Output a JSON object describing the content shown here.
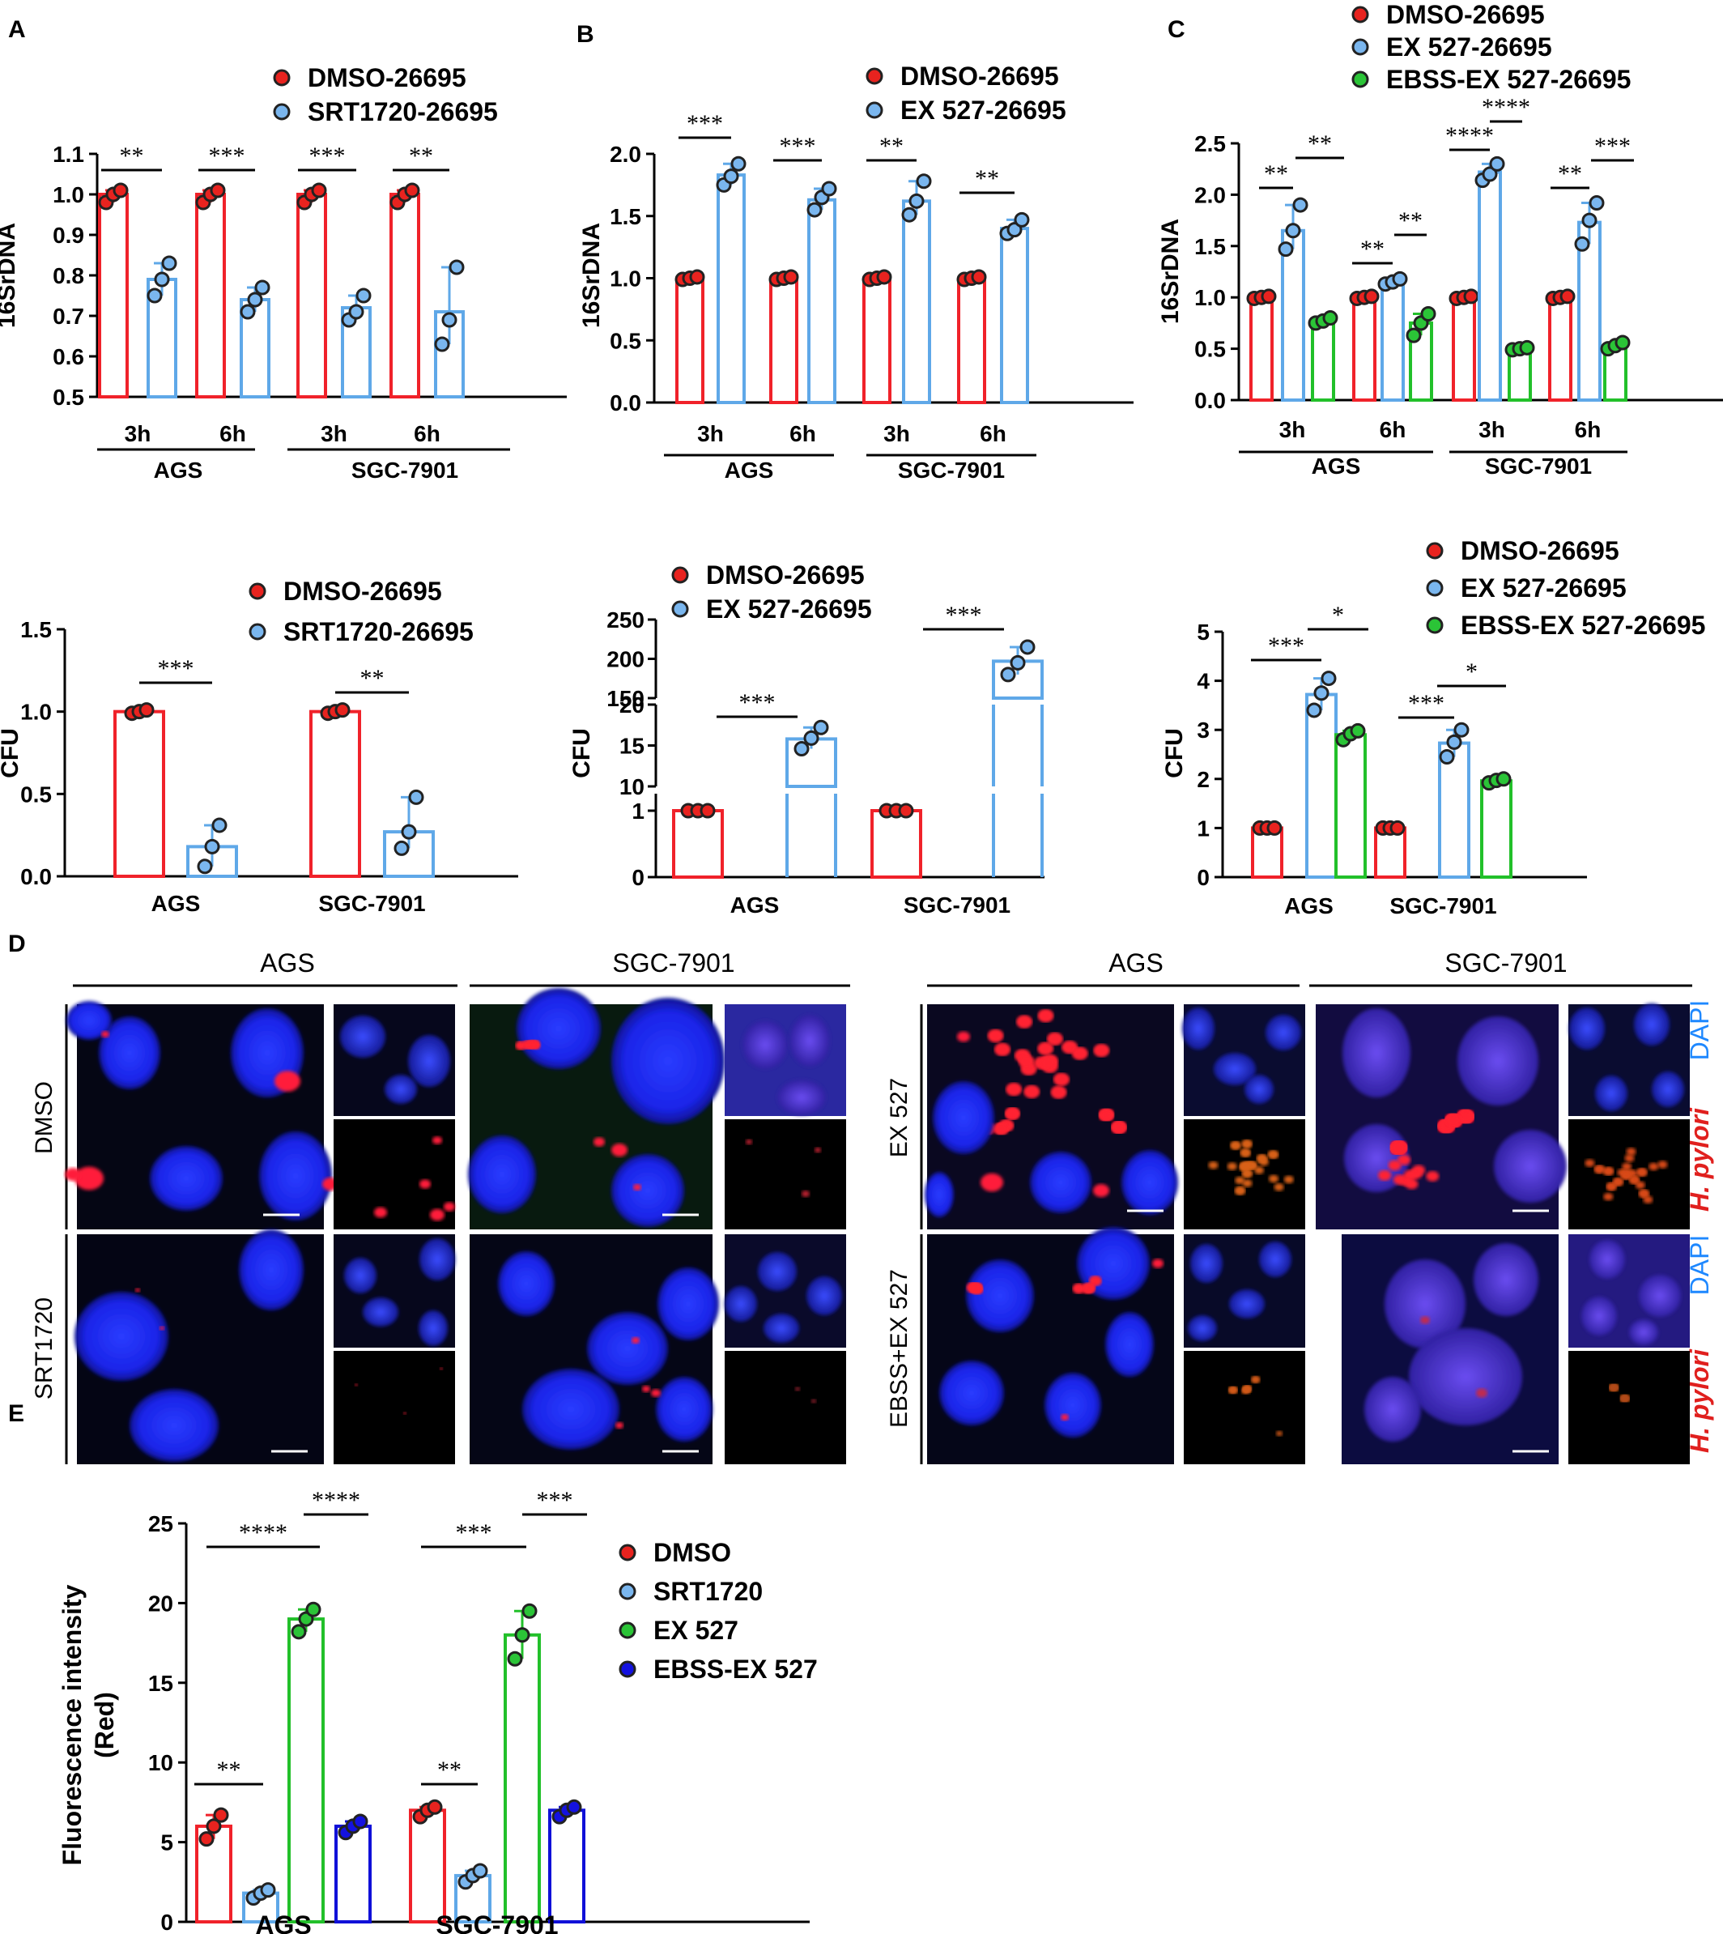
{
  "colors": {
    "red": "#f0222a",
    "lightblue": "#5fa8e8",
    "green": "#22c02a",
    "darkblue": "#1010d8",
    "dot_red": "#e8231f",
    "dot_lightblue": "#7ab6ee",
    "dot_green": "#2bc437",
    "dot_darkblue": "#1412e0",
    "dapi": "#1e88ff",
    "hpylori": "#e0201e"
  },
  "panels": {
    "A": "A",
    "B": "B",
    "C": "C",
    "D": "D",
    "E": "E"
  },
  "chart_data": [
    {
      "id": "A-top",
      "type": "bar",
      "ylabel": "16SrDNA",
      "ylim": [
        0.5,
        1.1
      ],
      "yticks": [
        "0.5",
        "0.6",
        "0.7",
        "0.8",
        "0.9",
        "1.0",
        "1.1"
      ],
      "categories": [
        "3h",
        "6h",
        "3h",
        "6h"
      ],
      "groups": [
        "AGS",
        "SGC-7901"
      ],
      "series": [
        {
          "name": "DMSO-26695",
          "values": [
            1.0,
            1.0,
            1.0,
            1.0
          ],
          "points": [
            [
              0.98,
              1.0,
              1.01
            ],
            [
              0.98,
              1.0,
              1.01
            ],
            [
              0.98,
              1.0,
              1.01
            ],
            [
              0.98,
              1.0,
              1.01
            ]
          ]
        },
        {
          "name": "SRT1720-26695",
          "values": [
            0.79,
            0.74,
            0.72,
            0.71
          ],
          "points": [
            [
              0.75,
              0.79,
              0.83
            ],
            [
              0.71,
              0.74,
              0.77
            ],
            [
              0.69,
              0.71,
              0.75
            ],
            [
              0.63,
              0.69,
              0.82
            ]
          ]
        }
      ],
      "significance": [
        "**",
        "***",
        "***",
        "**"
      ]
    },
    {
      "id": "B-top",
      "type": "bar",
      "ylabel": "16SrDNA",
      "ylim": [
        0.0,
        2.0
      ],
      "yticks": [
        "0.0",
        "0.5",
        "1.0",
        "1.5",
        "2.0"
      ],
      "categories": [
        "3h",
        "6h",
        "3h",
        "6h"
      ],
      "groups": [
        "AGS",
        "SGC-7901"
      ],
      "series": [
        {
          "name": "DMSO-26695",
          "values": [
            1.0,
            1.0,
            1.0,
            1.0
          ],
          "points": [
            [
              0.99,
              1.0,
              1.01
            ],
            [
              0.99,
              1.0,
              1.01
            ],
            [
              0.99,
              1.0,
              1.01
            ],
            [
              0.99,
              1.0,
              1.01
            ]
          ]
        },
        {
          "name": "EX 527-26695",
          "values": [
            1.83,
            1.63,
            1.62,
            1.4
          ],
          "points": [
            [
              1.75,
              1.82,
              1.92
            ],
            [
              1.55,
              1.65,
              1.72
            ],
            [
              1.51,
              1.62,
              1.78
            ],
            [
              1.36,
              1.39,
              1.47
            ]
          ]
        }
      ],
      "significance": [
        "***",
        "***",
        "**",
        "**"
      ]
    },
    {
      "id": "C-top",
      "type": "bar",
      "ylabel": "16SrDNA",
      "ylim": [
        0.0,
        2.5
      ],
      "yticks": [
        "0.0",
        "0.5",
        "1.0",
        "1.5",
        "2.0",
        "2.5"
      ],
      "categories": [
        "3h",
        "6h",
        "3h",
        "6h"
      ],
      "groups": [
        "AGS",
        "SGC-7901"
      ],
      "series": [
        {
          "name": "DMSO-26695",
          "values": [
            1.0,
            1.0,
            1.0,
            1.0
          ],
          "points": [
            [
              0.99,
              1.0,
              1.01
            ],
            [
              0.99,
              1.0,
              1.01
            ],
            [
              0.99,
              1.0,
              1.01
            ],
            [
              0.99,
              1.0,
              1.01
            ]
          ]
        },
        {
          "name": "EX 527-26695",
          "values": [
            1.65,
            1.15,
            2.22,
            1.73
          ],
          "points": [
            [
              1.47,
              1.65,
              1.9
            ],
            [
              1.13,
              1.15,
              1.18
            ],
            [
              2.14,
              2.2,
              2.3
            ],
            [
              1.52,
              1.75,
              1.92
            ]
          ]
        },
        {
          "name": "EBSS-EX 527-26695",
          "values": [
            0.77,
            0.75,
            0.5,
            0.53
          ],
          "points": [
            [
              0.75,
              0.77,
              0.8
            ],
            [
              0.63,
              0.75,
              0.84
            ],
            [
              0.49,
              0.5,
              0.51
            ],
            [
              0.5,
              0.53,
              0.56
            ]
          ]
        }
      ],
      "significance": [
        [
          "**",
          "**"
        ],
        [
          "**",
          "**"
        ],
        [
          "****",
          "****"
        ],
        [
          "**",
          "***"
        ]
      ]
    },
    {
      "id": "A-bottom",
      "type": "bar",
      "ylabel": "CFU",
      "ylim": [
        0.0,
        1.5
      ],
      "yticks": [
        "0.0",
        "0.5",
        "1.0",
        "1.5"
      ],
      "categories": [
        "AGS",
        "SGC-7901"
      ],
      "series": [
        {
          "name": "DMSO-26695",
          "values": [
            1.0,
            1.0
          ],
          "points": [
            [
              0.99,
              1.0,
              1.01
            ],
            [
              0.99,
              1.0,
              1.01
            ]
          ]
        },
        {
          "name": "SRT1720-26695",
          "values": [
            0.18,
            0.27
          ],
          "points": [
            [
              0.06,
              0.18,
              0.31
            ],
            [
              0.17,
              0.27,
              0.48
            ]
          ]
        }
      ],
      "significance": [
        "***",
        "**"
      ]
    },
    {
      "id": "B-bottom",
      "type": "bar",
      "ylabel": "CFU",
      "yticks_segments": [
        [
          "0",
          "1"
        ],
        [
          "10",
          "15",
          "20"
        ],
        [
          "150",
          "200",
          "250"
        ]
      ],
      "categories": [
        "AGS",
        "SGC-7901"
      ],
      "series": [
        {
          "name": "DMSO-26695",
          "values": [
            1.0,
            1.0
          ],
          "points": [
            [
              1.0,
              1.0,
              1.0
            ],
            [
              1.0,
              1.0,
              1.0
            ]
          ]
        },
        {
          "name": "EX 527-26695",
          "values": [
            15.8,
            197
          ],
          "points": [
            [
              14.6,
              15.9,
              17.2
            ],
            [
              180,
              195,
              215
            ]
          ]
        }
      ],
      "significance": [
        "***",
        "***"
      ]
    },
    {
      "id": "C-bottom",
      "type": "bar",
      "ylabel": "CFU",
      "ylim": [
        0,
        5
      ],
      "yticks": [
        "0",
        "1",
        "2",
        "3",
        "4",
        "5"
      ],
      "categories": [
        "AGS",
        "SGC-7901"
      ],
      "series": [
        {
          "name": "DMSO-26695",
          "values": [
            1.0,
            1.0
          ],
          "points": [
            [
              1.0,
              1.0,
              1.0
            ],
            [
              1.0,
              1.0,
              1.0
            ]
          ]
        },
        {
          "name": "EX 527-26695",
          "values": [
            3.72,
            2.73
          ],
          "points": [
            [
              3.4,
              3.75,
              4.05
            ],
            [
              2.45,
              2.75,
              3.0
            ]
          ]
        },
        {
          "name": "EBSS-EX 527-26695",
          "values": [
            2.9,
            1.96
          ],
          "points": [
            [
              2.8,
              2.92,
              2.98
            ],
            [
              1.92,
              1.97,
              2.0
            ]
          ]
        }
      ],
      "significance": [
        [
          "***",
          "*"
        ],
        [
          "***",
          "*"
        ]
      ]
    },
    {
      "id": "E",
      "type": "bar",
      "ylabel": "Fluorescence intensity\n(Red)",
      "ylim": [
        0,
        25
      ],
      "yticks": [
        "0",
        "5",
        "10",
        "15",
        "20",
        "25"
      ],
      "categories": [
        "AGS",
        "SGC-7901"
      ],
      "series": [
        {
          "name": "DMSO",
          "values": [
            6.0,
            7.0
          ],
          "points": [
            [
              5.2,
              6.0,
              6.7
            ],
            [
              6.6,
              7.0,
              7.2
            ]
          ]
        },
        {
          "name": "SRT1720",
          "values": [
            1.8,
            2.9
          ],
          "points": [
            [
              1.5,
              1.8,
              2.0
            ],
            [
              2.5,
              2.9,
              3.2
            ]
          ]
        },
        {
          "name": "EX 527",
          "values": [
            19.0,
            18.0
          ],
          "points": [
            [
              18.2,
              19.0,
              19.6
            ],
            [
              16.5,
              18.0,
              19.5
            ]
          ]
        },
        {
          "name": "EBSS-EX 527",
          "values": [
            6.0,
            7.0
          ],
          "points": [
            [
              5.6,
              6.0,
              6.3
            ],
            [
              6.6,
              7.0,
              7.2
            ]
          ]
        }
      ],
      "significance": [
        [
          "**",
          "****",
          "****"
        ],
        [
          "**",
          "***",
          "***"
        ]
      ]
    }
  ],
  "legends": {
    "A_top": [
      "DMSO-26695",
      "SRT1720-26695"
    ],
    "B_top": [
      "DMSO-26695",
      "EX 527-26695"
    ],
    "C_top": [
      "DMSO-26695",
      "EX 527-26695",
      "EBSS-EX 527-26695"
    ],
    "A_bottom": [
      "DMSO-26695",
      "SRT1720-26695"
    ],
    "B_bottom": [
      "DMSO-26695",
      "EX 527-26695"
    ],
    "C_bottom": [
      "DMSO-26695",
      "EX 527-26695",
      "EBSS-EX 527-26695"
    ],
    "E": [
      "DMSO",
      "SRT1720",
      "EX 527",
      "EBSS-EX 527"
    ]
  },
  "panel_d": {
    "left_headers": [
      "AGS",
      "SGC-7901"
    ],
    "right_headers": [
      "AGS",
      "SGC-7901"
    ],
    "left_rows": [
      "DMSO",
      "SRT1720"
    ],
    "right_rows": [
      "EX 527",
      "EBSS+EX 527"
    ],
    "channel_labels": {
      "dapi": "DAPI",
      "hpylori": "H. pylori"
    }
  }
}
